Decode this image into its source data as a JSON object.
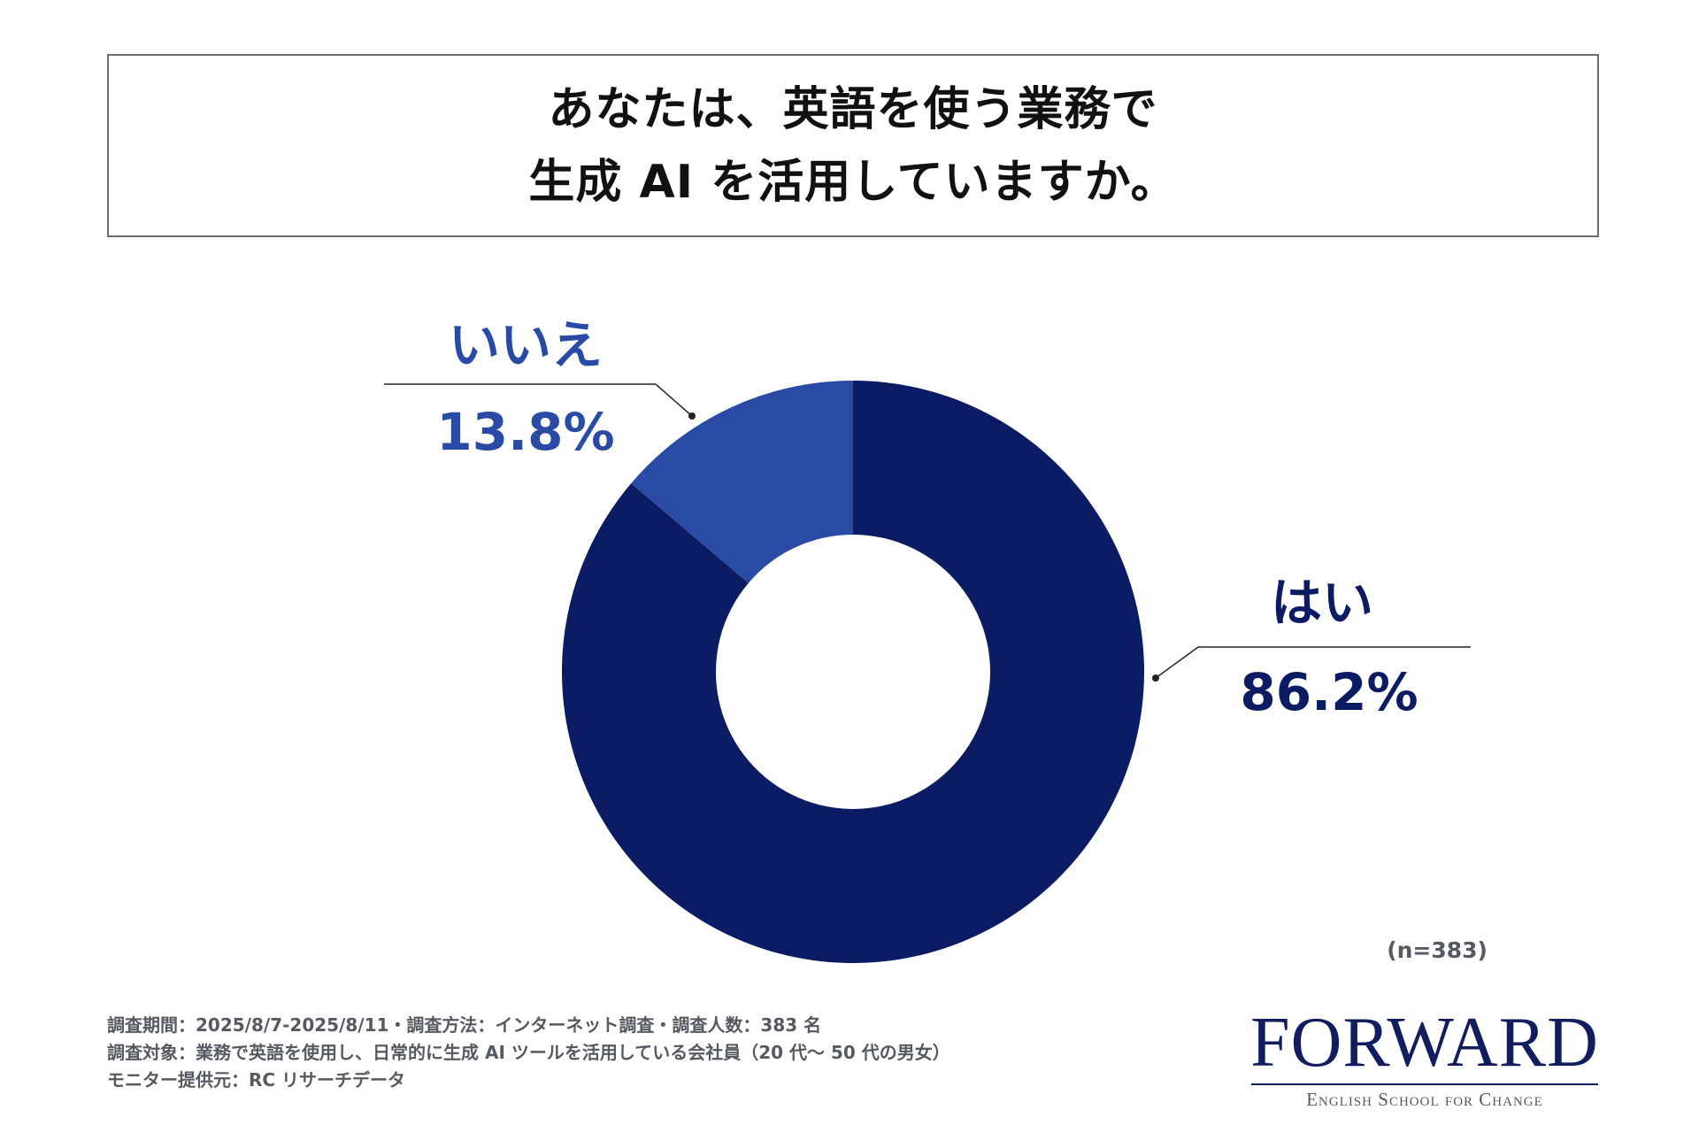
{
  "title": {
    "line1": "あなたは、英語を使う業務で",
    "line2": "生成 AI を活用していますか。"
  },
  "chart_data": {
    "type": "pie",
    "donut": true,
    "categories": [
      "はい",
      "いいえ"
    ],
    "values": [
      86.2,
      13.8
    ],
    "value_labels": [
      "86.2%",
      "13.8%"
    ],
    "colors": [
      "#0b1b64",
      "#2a4ba5"
    ],
    "label_colors": [
      "#0b1b64",
      "#2a4ba5"
    ],
    "sample_note": "(n=383)"
  },
  "footnotes": [
    "調査期間：2025/8/7-2025/8/11・調査方法：インターネット調査・調査人数：383 名",
    "調査対象：業務で英語を使用し、日常的に生成 AI ツールを活用している会社員（20 代～ 50 代の男女）",
    "モニター提供元：RC リサーチデータ"
  ],
  "logo": {
    "name": "FORWARD",
    "tagline": "English School for Change"
  }
}
